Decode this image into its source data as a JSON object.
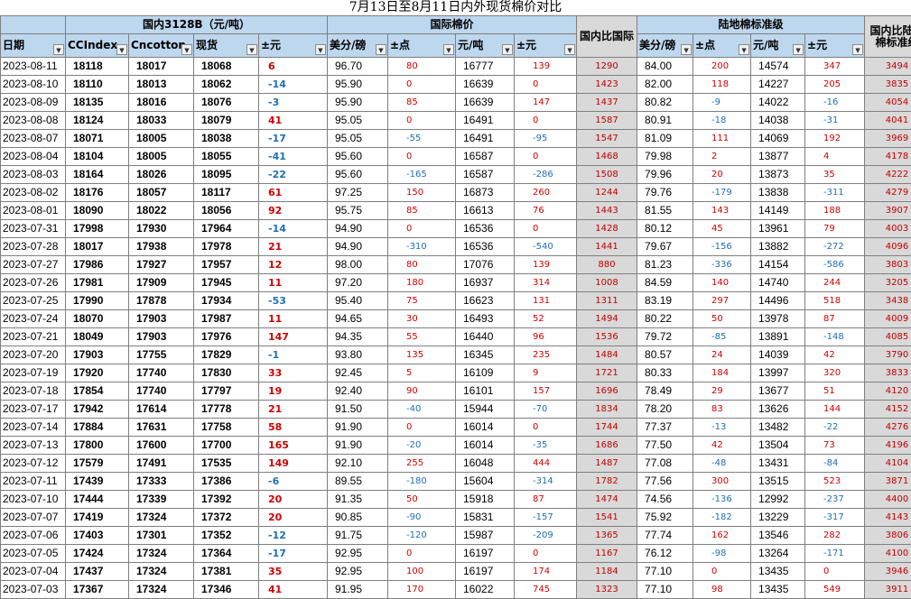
{
  "title": "7月13日至8月11日内外现货棉价对比",
  "groups": {
    "domestic": "国内3128B（元/吨）",
    "intl": "国际棉价",
    "cmp_intl": "国内比国际",
    "land": "陆地棉标准级",
    "cmp_land": "国内比陆地棉标准级"
  },
  "headers": {
    "date": "日期",
    "ccindex": "CCIndex",
    "cncotton": "Cncotton",
    "spot": "现货",
    "chg": "±元",
    "usd": "美分/磅",
    "pts": "±点",
    "cny": "元/吨",
    "chg2": "±元",
    "usd2": "美分/磅",
    "pts2": "±点",
    "cny2": "元/吨",
    "chg3": "±元"
  },
  "rows": [
    [
      "2023-08-11",
      "18118",
      "18017",
      "18068",
      "6",
      "96.70",
      "80",
      "16777",
      "139",
      "1290",
      "84.00",
      "200",
      "14574",
      "347",
      "3494"
    ],
    [
      "2023-08-10",
      "18110",
      "18013",
      "18062",
      "-14",
      "95.90",
      "0",
      "16639",
      "0",
      "1423",
      "82.00",
      "118",
      "14227",
      "205",
      "3835"
    ],
    [
      "2023-08-09",
      "18135",
      "18016",
      "18076",
      "-3",
      "95.90",
      "85",
      "16639",
      "147",
      "1437",
      "80.82",
      "-9",
      "14022",
      "-16",
      "4054"
    ],
    [
      "2023-08-08",
      "18124",
      "18033",
      "18079",
      "41",
      "95.05",
      "0",
      "16491",
      "0",
      "1587",
      "80.91",
      "-18",
      "14038",
      "-31",
      "4041"
    ],
    [
      "2023-08-07",
      "18071",
      "18005",
      "18038",
      "-17",
      "95.05",
      "-55",
      "16491",
      "-95",
      "1547",
      "81.09",
      "111",
      "14069",
      "192",
      "3969"
    ],
    [
      "2023-08-04",
      "18104",
      "18005",
      "18055",
      "-41",
      "95.60",
      "0",
      "16587",
      "0",
      "1468",
      "79.98",
      "2",
      "13877",
      "4",
      "4178"
    ],
    [
      "2023-08-03",
      "18164",
      "18026",
      "18095",
      "-22",
      "95.60",
      "-165",
      "16587",
      "-286",
      "1508",
      "79.96",
      "20",
      "13873",
      "35",
      "4222"
    ],
    [
      "2023-08-02",
      "18176",
      "18057",
      "18117",
      "61",
      "97.25",
      "150",
      "16873",
      "260",
      "1244",
      "79.76",
      "-179",
      "13838",
      "-311",
      "4279"
    ],
    [
      "2023-08-01",
      "18090",
      "18022",
      "18056",
      "92",
      "95.75",
      "85",
      "16613",
      "76",
      "1443",
      "81.55",
      "143",
      "14149",
      "188",
      "3907"
    ],
    [
      "2023-07-31",
      "17998",
      "17930",
      "17964",
      "-14",
      "94.90",
      "0",
      "16536",
      "0",
      "1428",
      "80.12",
      "45",
      "13961",
      "79",
      "4003"
    ],
    [
      "2023-07-28",
      "18017",
      "17938",
      "17978",
      "21",
      "94.90",
      "-310",
      "16536",
      "-540",
      "1441",
      "79.67",
      "-156",
      "13882",
      "-272",
      "4096"
    ],
    [
      "2023-07-27",
      "17986",
      "17927",
      "17957",
      "12",
      "98.00",
      "80",
      "17076",
      "139",
      "880",
      "81.23",
      "-336",
      "14154",
      "-586",
      "3803"
    ],
    [
      "2023-07-26",
      "17981",
      "17909",
      "17945",
      "11",
      "97.20",
      "180",
      "16937",
      "314",
      "1008",
      "84.59",
      "140",
      "14740",
      "244",
      "3205"
    ],
    [
      "2023-07-25",
      "17990",
      "17878",
      "17934",
      "-53",
      "95.40",
      "75",
      "16623",
      "131",
      "1311",
      "83.19",
      "297",
      "14496",
      "518",
      "3438"
    ],
    [
      "2023-07-24",
      "18070",
      "17903",
      "17987",
      "11",
      "94.65",
      "30",
      "16493",
      "52",
      "1494",
      "80.22",
      "50",
      "13978",
      "87",
      "4009"
    ],
    [
      "2023-07-21",
      "18049",
      "17903",
      "17976",
      "147",
      "94.35",
      "55",
      "16440",
      "96",
      "1536",
      "79.72",
      "-85",
      "13891",
      "-148",
      "4085"
    ],
    [
      "2023-07-20",
      "17903",
      "17755",
      "17829",
      "-1",
      "93.80",
      "135",
      "16345",
      "235",
      "1484",
      "80.57",
      "24",
      "14039",
      "42",
      "3790"
    ],
    [
      "2023-07-19",
      "17920",
      "17740",
      "17830",
      "33",
      "92.45",
      "5",
      "16109",
      "9",
      "1721",
      "80.33",
      "184",
      "13997",
      "320",
      "3833"
    ],
    [
      "2023-07-18",
      "17854",
      "17740",
      "17797",
      "19",
      "92.40",
      "90",
      "16101",
      "157",
      "1696",
      "78.49",
      "29",
      "13677",
      "51",
      "4120"
    ],
    [
      "2023-07-17",
      "17942",
      "17614",
      "17778",
      "21",
      "91.50",
      "-40",
      "15944",
      "-70",
      "1834",
      "78.20",
      "83",
      "13626",
      "144",
      "4152"
    ],
    [
      "2023-07-14",
      "17884",
      "17631",
      "17758",
      "58",
      "91.90",
      "0",
      "16014",
      "0",
      "1744",
      "77.37",
      "-13",
      "13482",
      "-22",
      "4276"
    ],
    [
      "2023-07-13",
      "17800",
      "17600",
      "17700",
      "165",
      "91.90",
      "-20",
      "16014",
      "-35",
      "1686",
      "77.50",
      "42",
      "13504",
      "73",
      "4196"
    ],
    [
      "2023-07-12",
      "17579",
      "17491",
      "17535",
      "149",
      "92.10",
      "255",
      "16048",
      "444",
      "1487",
      "77.08",
      "-48",
      "13431",
      "-84",
      "4104"
    ],
    [
      "2023-07-11",
      "17439",
      "17333",
      "17386",
      "-6",
      "89.55",
      "-180",
      "15604",
      "-314",
      "1782",
      "77.56",
      "300",
      "13515",
      "523",
      "3871"
    ],
    [
      "2023-07-10",
      "17444",
      "17339",
      "17392",
      "20",
      "91.35",
      "50",
      "15918",
      "87",
      "1474",
      "74.56",
      "-136",
      "12992",
      "-237",
      "4400"
    ],
    [
      "2023-07-07",
      "17419",
      "17324",
      "17372",
      "20",
      "90.85",
      "-90",
      "15831",
      "-157",
      "1541",
      "75.92",
      "-182",
      "13229",
      "-317",
      "4143"
    ],
    [
      "2023-07-06",
      "17403",
      "17301",
      "17352",
      "-12",
      "91.75",
      "-120",
      "15987",
      "-209",
      "1365",
      "77.74",
      "162",
      "13546",
      "282",
      "3806"
    ],
    [
      "2023-07-05",
      "17424",
      "17324",
      "17364",
      "-17",
      "92.95",
      "0",
      "16197",
      "0",
      "1167",
      "76.12",
      "-98",
      "13264",
      "-171",
      "4100"
    ],
    [
      "2023-07-04",
      "17437",
      "17324",
      "17381",
      "35",
      "92.95",
      "100",
      "16197",
      "174",
      "1184",
      "77.10",
      "0",
      "13435",
      "0",
      "3946"
    ],
    [
      "2023-07-03",
      "17367",
      "17324",
      "17346",
      "41",
      "91.95",
      "170",
      "16022",
      "745",
      "1323",
      "77.10",
      "98",
      "13435",
      "549",
      "3911"
    ]
  ]
}
